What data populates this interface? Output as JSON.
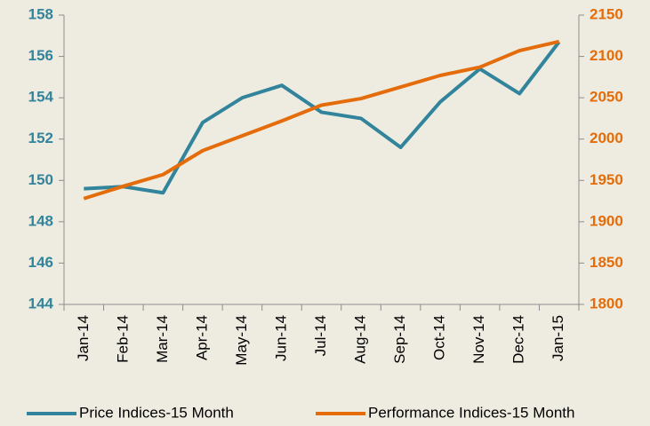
{
  "chart_data": {
    "type": "line",
    "categories": [
      "Jan-14",
      "Feb-14",
      "Mar-14",
      "Apr-14",
      "May-14",
      "Jun-14",
      "Jul-14",
      "Aug-14",
      "Sep-14",
      "Oct-14",
      "Nov-14",
      "Dec-14",
      "Jan-15"
    ],
    "series": [
      {
        "name": "Price Indices-15 Month",
        "color": "#31849b",
        "axis": "y",
        "values": [
          149.6,
          149.7,
          149.4,
          152.8,
          154.0,
          154.6,
          153.3,
          153.0,
          151.6,
          153.8,
          155.4,
          154.2,
          156.7
        ]
      },
      {
        "name": "Performance Indices-15 Month",
        "color": "#e46c0a",
        "axis": "y2",
        "values": [
          1928,
          1943,
          1957,
          1986,
          2004,
          2022,
          2041,
          2049,
          2063,
          2077,
          2087,
          2107,
          2118
        ]
      }
    ],
    "ylim": [
      144,
      158
    ],
    "yticks": [
      144,
      146,
      148,
      150,
      152,
      154,
      156,
      158
    ],
    "y2lim": [
      1800,
      2150
    ],
    "y2ticks": [
      1800,
      1850,
      1900,
      1950,
      2000,
      2050,
      2100,
      2150
    ],
    "ycolor": "#31849b",
    "y2color": "#e46c0a",
    "legend": "bottom"
  }
}
